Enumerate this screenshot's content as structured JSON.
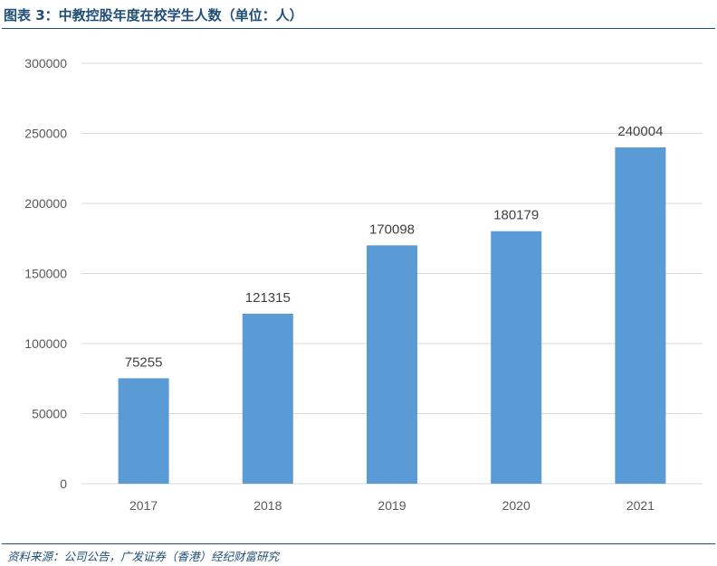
{
  "header": {
    "title": "图表 3：中教控股年度在校学生人数（单位：人）"
  },
  "footer": {
    "source": "资料来源：公司公告，广发证券（香港）经纪财富研究"
  },
  "chart_data": {
    "type": "bar",
    "title": "",
    "xlabel": "",
    "ylabel": "",
    "categories": [
      "2017",
      "2018",
      "2019",
      "2020",
      "2021"
    ],
    "values": [
      75255,
      121315,
      170098,
      180179,
      240004
    ],
    "data_labels": [
      "75255",
      "121315",
      "170098",
      "180179",
      "240004"
    ],
    "y_ticks": [
      "0",
      "50000",
      "100000",
      "150000",
      "200000",
      "250000",
      "300000"
    ],
    "ylim": [
      0,
      300000
    ],
    "grid": true,
    "legend": "none",
    "bar_color": "#5b9bd5",
    "grid_color": "#d9d9d9"
  }
}
